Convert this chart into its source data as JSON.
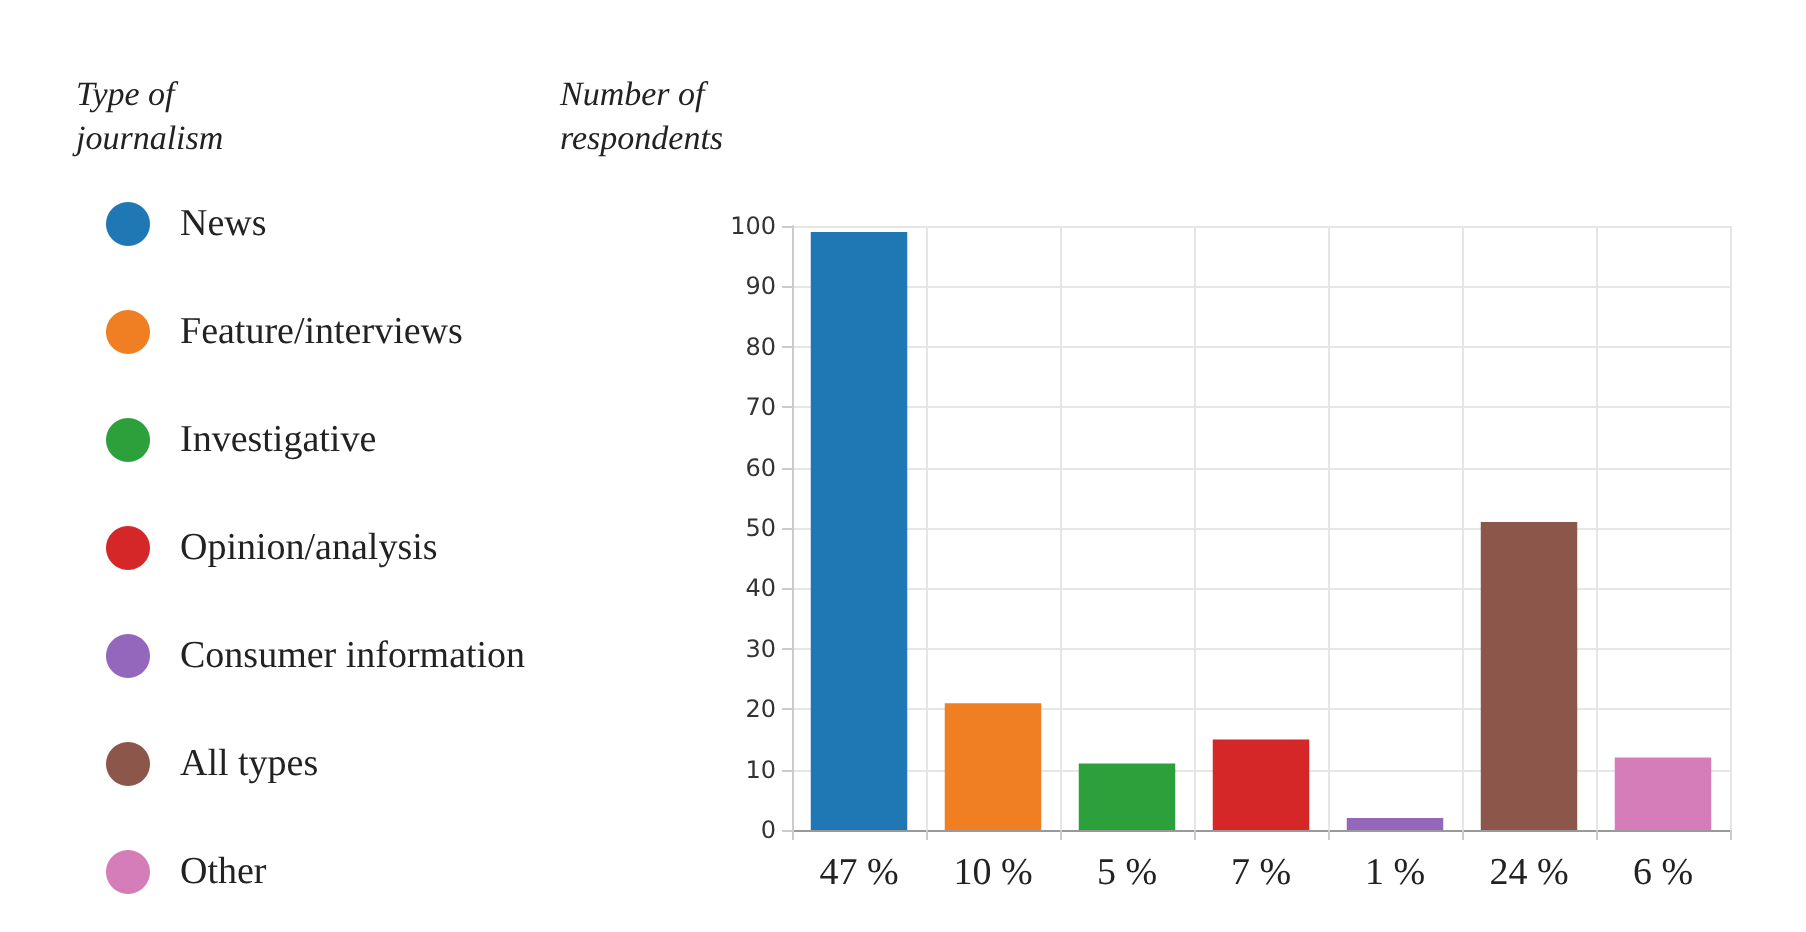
{
  "chart_data": {
    "type": "bar",
    "legend_title": "Type of\njournalism",
    "ylabel": "Number of\nrespondents",
    "categories": [
      "47 %",
      "10 %",
      "5 %",
      "7 %",
      "1 %",
      "24 %",
      "6 %"
    ],
    "stacked": true,
    "series": [
      {
        "name": "News",
        "color": "#1f77b4",
        "values": [
          99,
          null,
          null,
          null,
          null,
          null,
          null
        ]
      },
      {
        "name": "Feature/interviews",
        "color": "#ef7f22",
        "values": [
          null,
          21,
          null,
          null,
          null,
          null,
          null
        ]
      },
      {
        "name": "Investigative",
        "color": "#2ca03a",
        "values": [
          null,
          null,
          11,
          null,
          null,
          null,
          null
        ]
      },
      {
        "name": "Opinion/analysis",
        "color": "#d62728",
        "values": [
          null,
          null,
          null,
          15,
          null,
          null,
          null
        ]
      },
      {
        "name": "Consumer information",
        "color": "#9467bd",
        "values": [
          null,
          null,
          null,
          null,
          2,
          null,
          null
        ]
      },
      {
        "name": "All types",
        "color": "#8c564b",
        "values": [
          null,
          null,
          null,
          null,
          null,
          51,
          null
        ]
      },
      {
        "name": "Other",
        "color": "#d57db8",
        "values": [
          null,
          null,
          null,
          null,
          null,
          null,
          12
        ]
      }
    ],
    "ylim": [
      0,
      100
    ],
    "yticks": [
      0,
      10,
      20,
      30,
      40,
      50,
      60,
      70,
      80,
      90,
      100
    ],
    "grid": true,
    "legend": "left"
  }
}
